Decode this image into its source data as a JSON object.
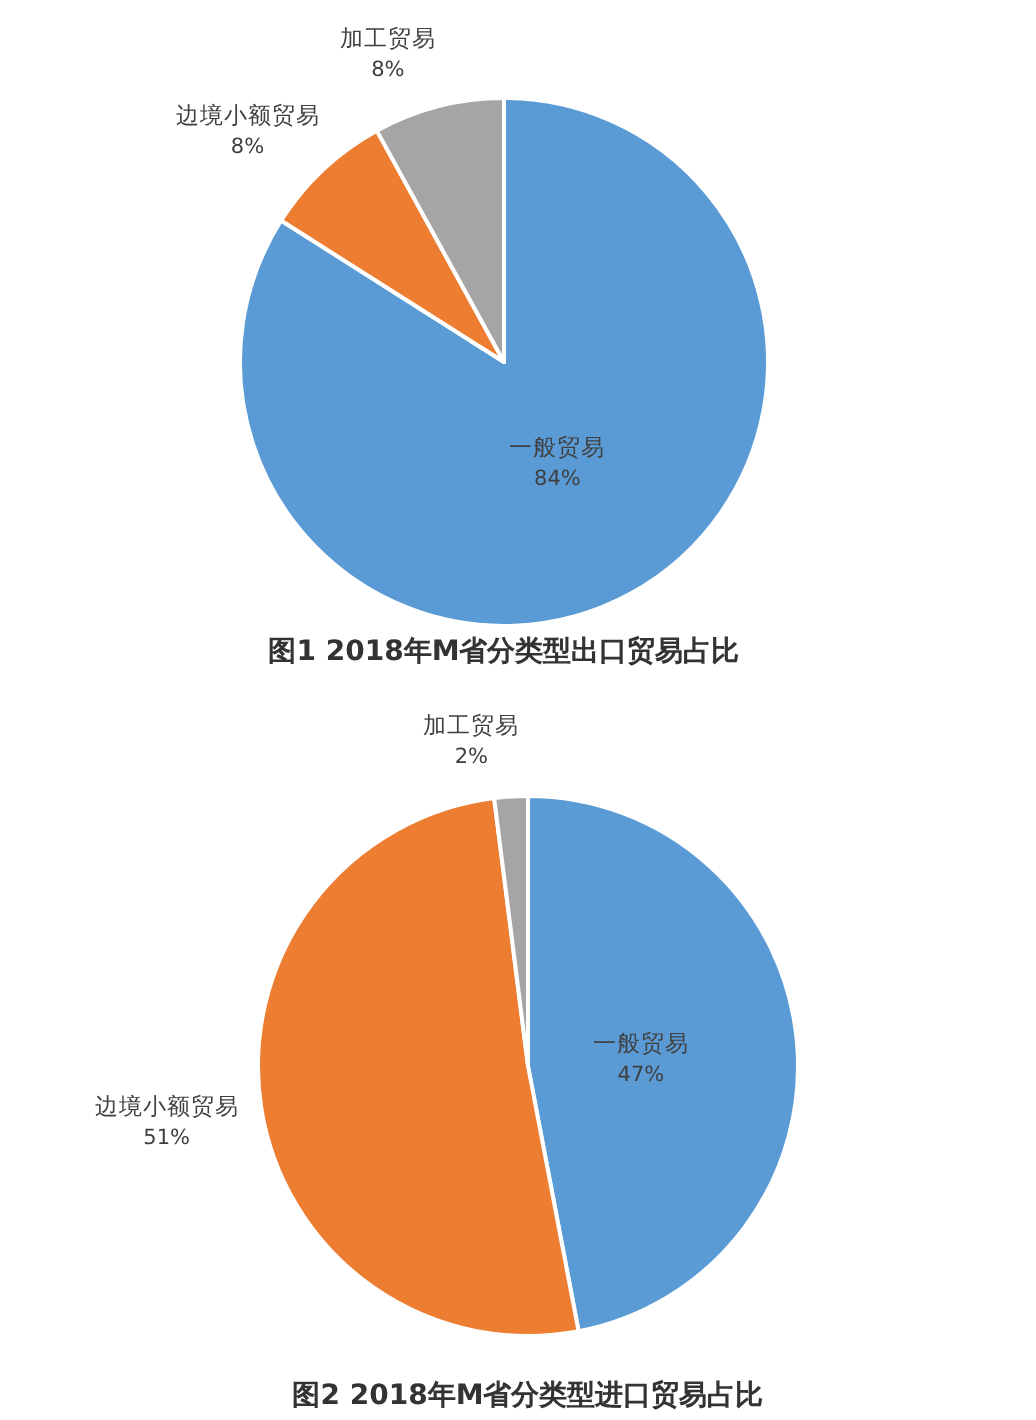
{
  "chart_data": [
    {
      "type": "pie",
      "title": "图1 2018年M省分类型出口贸易占比",
      "categories": [
        "一般贸易",
        "边境小额贸易",
        "加工贸易"
      ],
      "values": [
        84,
        8,
        8
      ],
      "value_labels": [
        "84%",
        "8%",
        "8%"
      ],
      "colors": [
        "#5b9bd5",
        "#ed7d31",
        "#a5a5a5"
      ]
    },
    {
      "type": "pie",
      "title": "图2  2018年M省分类型进口贸易占比",
      "categories": [
        "一般贸易",
        "边境小额贸易",
        "加工贸易"
      ],
      "values": [
        47,
        51,
        2
      ],
      "value_labels": [
        "47%",
        "51%",
        "2%"
      ],
      "colors": [
        "#5b9bd5",
        "#ed7d31",
        "#a5a5a5"
      ]
    }
  ]
}
